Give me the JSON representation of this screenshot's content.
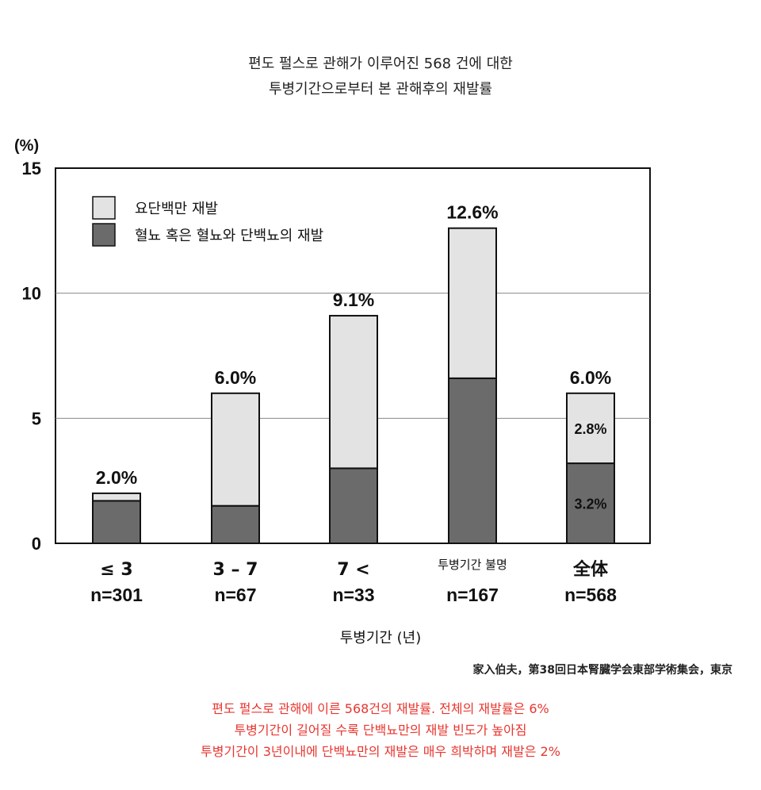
{
  "title_lines": [
    "편도 펄스로 관해가 이루어진 568 건에 대한",
    "투병기간으로부터 본 관해후의 재발률"
  ],
  "chart_data": {
    "type": "bar",
    "stacked": true,
    "ylabel": "(%)",
    "ylim": [
      0,
      15
    ],
    "yticks": [
      0,
      5,
      10,
      15
    ],
    "grid": true,
    "legend_position": "top-left",
    "xlabel": "투병기간 (년)",
    "categories": [
      {
        "label": "≤ 3",
        "n": "n=301"
      },
      {
        "label": "3 – 7",
        "n": "n=67"
      },
      {
        "label": "7 <",
        "n": "n=33"
      },
      {
        "label": "투병기간 불명",
        "n": "n=167"
      },
      {
        "label": "全体",
        "n": "n=568"
      }
    ],
    "series": [
      {
        "name": "혈뇨 혹은 혈뇨와 단백뇨의 재발",
        "color": "#6b6b6b",
        "values": [
          1.7,
          1.5,
          3.0,
          6.6,
          3.2
        ]
      },
      {
        "name": "요단백만 재발",
        "color": "#e3e3e3",
        "values": [
          0.3,
          4.5,
          6.1,
          6.0,
          2.8
        ]
      }
    ],
    "totals_labels": [
      "2.0%",
      "6.0%",
      "9.1%",
      "12.6%",
      "6.0%"
    ],
    "segment_labels": [
      {
        "category": 4,
        "series": 1,
        "text": "2.8%"
      },
      {
        "category": 4,
        "series": 0,
        "text": "3.2%"
      }
    ]
  },
  "source": "家入伯夫，第38回日本腎臓学会東部学術集会，東京",
  "notes": [
    "편도 펄스로 관해에 이른 568건의 재발률. 전체의 재발률은 6%",
    "투병기간이 길어질 수록 단백뇨만의 재발 빈도가 높아짐",
    "투병기간이 3년이내에 단백뇨만의 재발은 매우 희박하며 재발은 2%"
  ]
}
